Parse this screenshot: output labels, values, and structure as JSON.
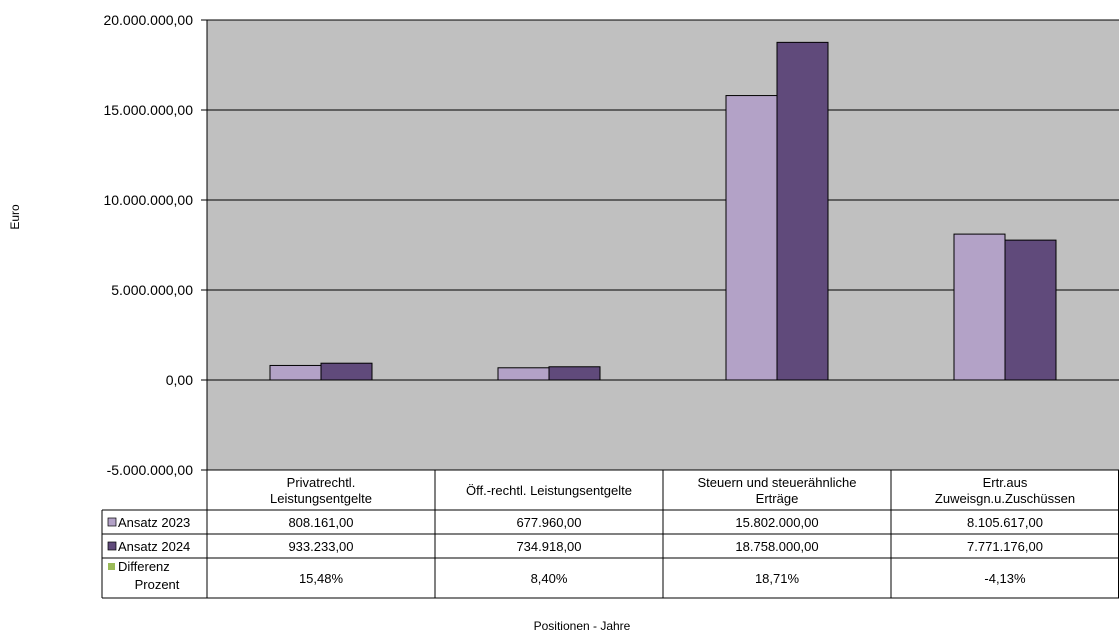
{
  "chart_data": {
    "type": "bar",
    "ylabel": "Euro",
    "xlabel": "Positionen - Jahre",
    "ylim": [
      -5000000,
      20000000
    ],
    "yticks": [
      {
        "value": -5000000,
        "label": "-5.000.000,00"
      },
      {
        "value": 0,
        "label": "0,00"
      },
      {
        "value": 5000000,
        "label": "5.000.000,00"
      },
      {
        "value": 10000000,
        "label": "10.000.000,00"
      },
      {
        "value": 15000000,
        "label": "15.000.000,00"
      },
      {
        "value": 20000000,
        "label": "20.000.000,00"
      }
    ],
    "grid": true,
    "categories": [
      [
        "Privatrechtl.",
        "Leistungsentgelte"
      ],
      [
        "Öff.-rechtl. Leistungsentgelte"
      ],
      [
        "Steuern und steuerähnliche",
        "Erträge"
      ],
      [
        "Ertr.aus",
        "Zuweisgn.u.Zuschüssen"
      ]
    ],
    "series": [
      {
        "name": "Ansatz 2023",
        "color": "#b3a2c7",
        "values": [
          808161,
          677960,
          15802000,
          8105617
        ],
        "labels": [
          "808.161,00",
          "677.960,00",
          "15.802.000,00",
          "8.105.617,00"
        ]
      },
      {
        "name": "Ansatz 2024",
        "color": "#604a7b",
        "values": [
          933233,
          734918,
          18758000,
          7771176
        ],
        "labels": [
          "933.233,00",
          "734.918,00",
          "18.758.000,00",
          "7.771.176,00"
        ]
      }
    ],
    "table_extra_row": {
      "name": [
        "Differenz",
        "Prozent"
      ],
      "color": "#9bbb59",
      "values": [
        15.48,
        8.4,
        18.71,
        -4.13
      ],
      "labels": [
        "15,48%",
        "8,40%",
        "18,71%",
        "-4,13%"
      ]
    },
    "plot_background": "#c0c0c0"
  }
}
